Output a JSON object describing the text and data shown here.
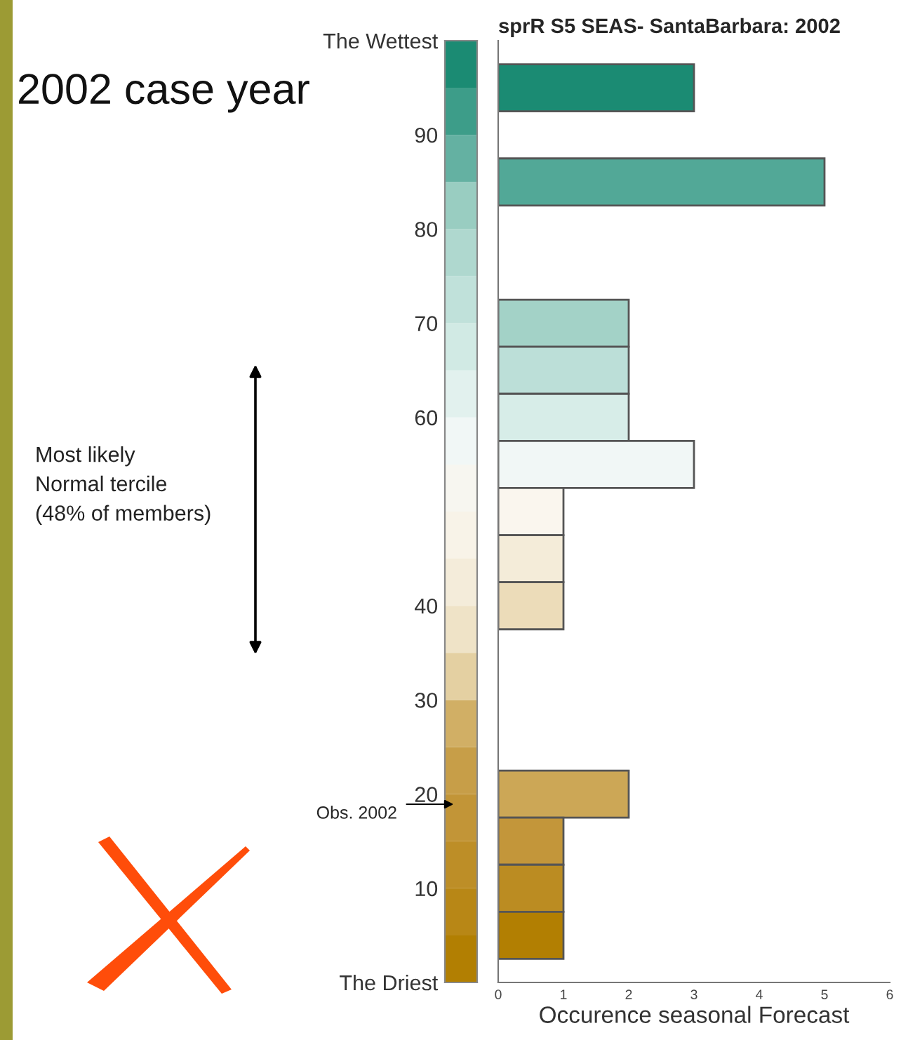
{
  "chart_data": {
    "type": "bar",
    "orientation": "horizontal",
    "title": "sprR S5 SEAS- SantaBarbara: 2002",
    "xlabel": "Occurence seasonal Forecast",
    "x": [
      95,
      85,
      70,
      65,
      60,
      55,
      50,
      45,
      40,
      20,
      15,
      10,
      5
    ],
    "values": [
      3,
      5,
      2,
      2,
      2,
      3,
      1,
      1,
      1,
      2,
      1,
      1,
      1
    ],
    "colors": [
      "#1b8b73",
      "#52a897",
      "#a3d2c7",
      "#bcdfd8",
      "#d7ede8",
      "#f1f7f6",
      "#faf6ee",
      "#f4ecd9",
      "#ecdcb9",
      "#cca756",
      "#c3963a",
      "#bb8c22",
      "#b27f02"
    ],
    "xlim": [
      0,
      6
    ],
    "xticks": [
      0,
      1,
      2,
      3,
      4,
      5,
      6
    ],
    "ylim": [
      0,
      100
    ],
    "yticks": [
      {
        "value": 0,
        "label": "The Driest"
      },
      10,
      20,
      30,
      40,
      60,
      70,
      80,
      90,
      {
        "value": 100,
        "label": "The Wettest"
      }
    ],
    "annotations": [
      "2002 case year",
      "Most likely\nNormal tercile\n(48% of members)",
      "Obs. 2002"
    ],
    "grid": false,
    "legend": false
  }
}
